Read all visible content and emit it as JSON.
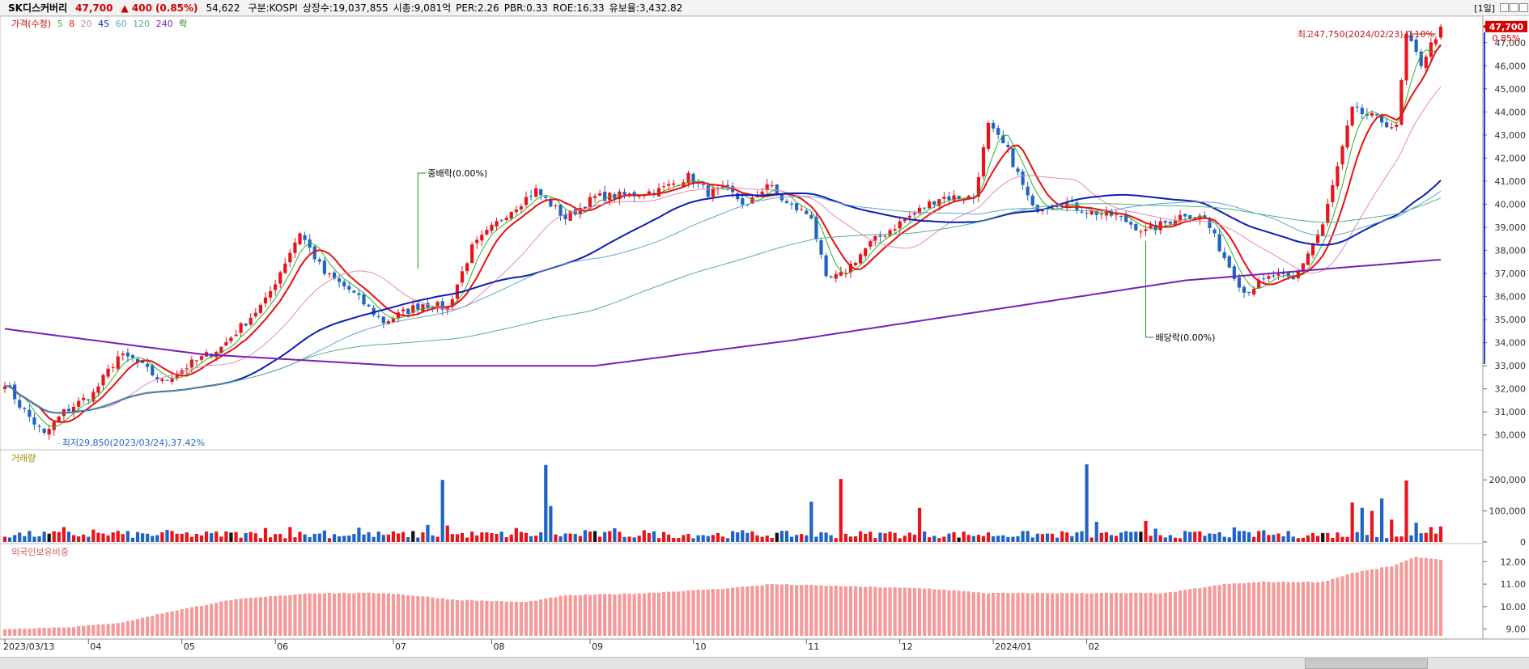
{
  "header": {
    "name": "SK디스커버리",
    "price": "47,700",
    "change": "▲ 400",
    "change_pct": "(0.85%)",
    "volume": "54,622",
    "market": "구분:KOSPI",
    "shares": "상장수:19,037,855",
    "mktcap": "시총:9,081억",
    "per": "PER:2.26",
    "pbr": "PBR:0.33",
    "roe": "ROE:16.33",
    "float": "유보율:3,432.82",
    "timeframe": "[1일]"
  },
  "legend": {
    "price": "가격(수정)",
    "ma5": "5",
    "ma8": "8",
    "ma20": "20",
    "ma45": "45",
    "ma60": "60",
    "ma120": "120",
    "ma240": "240",
    "event": "락"
  },
  "colors": {
    "up": "#e8141c",
    "down": "#1f63c7",
    "ma5": "#2bb22b",
    "ma8": "#e81010",
    "ma20": "#e38bb5",
    "ma45": "#0c1eb5",
    "ma60": "#5ea7c9",
    "ma120": "#52b088",
    "ma240": "#7a1fb8",
    "foreign": "#f59a9a"
  },
  "chart_data": [
    {
      "type": "candlestick",
      "title": "가격(수정)",
      "ylim": [
        29500,
        47800
      ],
      "yticks": [
        30000,
        31000,
        32000,
        33000,
        34000,
        35000,
        36000,
        37000,
        38000,
        39000,
        40000,
        41000,
        42000,
        43000,
        44000,
        45000,
        46000,
        47000
      ],
      "x_labels": [
        "2023/03/13",
        "04",
        "05",
        "06",
        "07",
        "08",
        "09",
        "10",
        "11",
        "12",
        "2024/01",
        "02"
      ],
      "last_price": "47,700",
      "last_pct": "0.85%",
      "annotations": {
        "high": "최고47,750(2024/02/23),0.10%",
        "low": "최저29,850(2023/03/24),37.42%",
        "event1": "중배락(0.00%)",
        "event2": "배당락(0.00%)"
      },
      "anchors": [
        [
          0,
          32300
        ],
        [
          3,
          31300
        ],
        [
          8,
          30000
        ],
        [
          12,
          31000
        ],
        [
          18,
          31800
        ],
        [
          23,
          33400
        ],
        [
          26,
          33300
        ],
        [
          32,
          32300
        ],
        [
          38,
          33100
        ],
        [
          44,
          33800
        ],
        [
          53,
          35800
        ],
        [
          60,
          38800
        ],
        [
          65,
          37000
        ],
        [
          70,
          36300
        ],
        [
          77,
          34900
        ],
        [
          85,
          35700
        ],
        [
          90,
          35500
        ],
        [
          95,
          38100
        ],
        [
          102,
          39600
        ],
        [
          108,
          40600
        ],
        [
          114,
          39400
        ],
        [
          120,
          40300
        ],
        [
          127,
          40400
        ],
        [
          133,
          40600
        ],
        [
          139,
          41200
        ],
        [
          143,
          40500
        ],
        [
          147,
          40600
        ],
        [
          151,
          39900
        ],
        [
          155,
          40900
        ],
        [
          159,
          40000
        ],
        [
          164,
          39500
        ],
        [
          167,
          36700
        ],
        [
          170,
          36900
        ],
        [
          176,
          38300
        ],
        [
          182,
          39200
        ],
        [
          190,
          40300
        ],
        [
          197,
          40300
        ],
        [
          200,
          43400
        ],
        [
          204,
          42300
        ],
        [
          209,
          39800
        ],
        [
          215,
          40100
        ],
        [
          220,
          39700
        ],
        [
          226,
          39500
        ],
        [
          232,
          38800
        ],
        [
          240,
          39600
        ],
        [
          244,
          39400
        ],
        [
          248,
          37700
        ],
        [
          252,
          36200
        ],
        [
          258,
          36900
        ],
        [
          262,
          36700
        ],
        [
          268,
          39100
        ],
        [
          274,
          44100
        ],
        [
          280,
          43600
        ],
        [
          283,
          43300
        ],
        [
          285,
          47300
        ],
        [
          288,
          46100
        ],
        [
          292,
          47700
        ]
      ],
      "ma_lines": [
        {
          "name": "5",
          "color": "#2bb22b",
          "period": 5
        },
        {
          "name": "8",
          "color": "#e81010",
          "period": 8
        },
        {
          "name": "20",
          "color": "#e38bb5",
          "period": 20
        },
        {
          "name": "45",
          "color": "#0c1eb5",
          "period": 45
        },
        {
          "name": "60",
          "color": "#5ea7c9",
          "period": 60
        },
        {
          "name": "120",
          "color": "#52b088",
          "period": 120
        },
        {
          "name": "240",
          "color": "#7a1fb8",
          "points": [
            [
              0,
              34600
            ],
            [
              40,
              33500
            ],
            [
              80,
              33000
            ],
            [
              120,
              33000
            ],
            [
              160,
              34100
            ],
            [
              200,
              35400
            ],
            [
              240,
              36700
            ],
            [
              292,
              37600
            ]
          ]
        }
      ]
    },
    {
      "type": "bar",
      "title": "거래량",
      "ylim": [
        0,
        250000
      ],
      "yticks": [
        0,
        100000,
        200000
      ],
      "ytick_labels": [
        "0",
        "100,000",
        "200,000"
      ],
      "spikes": [
        [
          12,
          48000
        ],
        [
          18,
          40000
        ],
        [
          23,
          36000
        ],
        [
          33,
          39000
        ],
        [
          45,
          34000
        ],
        [
          53,
          45000
        ],
        [
          58,
          48000
        ],
        [
          65,
          37000
        ],
        [
          72,
          46000
        ],
        [
          86,
          55000
        ],
        [
          89,
          200000
        ],
        [
          90,
          53000
        ],
        [
          104,
          45000
        ],
        [
          110,
          248000
        ],
        [
          111,
          116000
        ],
        [
          118,
          38000
        ],
        [
          124,
          44000
        ],
        [
          130,
          38000
        ],
        [
          150,
          38000
        ],
        [
          164,
          130000
        ],
        [
          170,
          203000
        ],
        [
          180,
          33000
        ],
        [
          186,
          110000
        ],
        [
          220,
          250000
        ],
        [
          222,
          65000
        ],
        [
          232,
          68000
        ],
        [
          234,
          43000
        ],
        [
          250,
          47000
        ],
        [
          256,
          38000
        ],
        [
          274,
          127000
        ],
        [
          276,
          110000
        ],
        [
          278,
          100000
        ],
        [
          280,
          140000
        ],
        [
          282,
          72000
        ],
        [
          285,
          198000
        ],
        [
          287,
          62000
        ],
        [
          290,
          48000
        ],
        [
          292,
          50000
        ]
      ]
    },
    {
      "type": "bar",
      "title": "외국인보유비중",
      "ylim": [
        8.7,
        12.3
      ],
      "yticks": [
        9,
        10,
        11,
        12
      ],
      "ytick_labels": [
        "9.00",
        "10.00",
        "11.00",
        "12.00"
      ],
      "anchors": [
        [
          0,
          9.0
        ],
        [
          14,
          9.1
        ],
        [
          24,
          9.3
        ],
        [
          34,
          9.8
        ],
        [
          46,
          10.3
        ],
        [
          62,
          10.6
        ],
        [
          78,
          10.6
        ],
        [
          92,
          10.3
        ],
        [
          106,
          10.2
        ],
        [
          114,
          10.5
        ],
        [
          130,
          10.6
        ],
        [
          146,
          10.8
        ],
        [
          156,
          11.0
        ],
        [
          172,
          10.9
        ],
        [
          188,
          10.8
        ],
        [
          200,
          10.6
        ],
        [
          220,
          10.6
        ],
        [
          236,
          10.6
        ],
        [
          248,
          11.0
        ],
        [
          256,
          11.1
        ],
        [
          268,
          11.1
        ],
        [
          274,
          11.5
        ],
        [
          282,
          11.8
        ],
        [
          287,
          12.2
        ],
        [
          292,
          12.1
        ]
      ]
    }
  ]
}
